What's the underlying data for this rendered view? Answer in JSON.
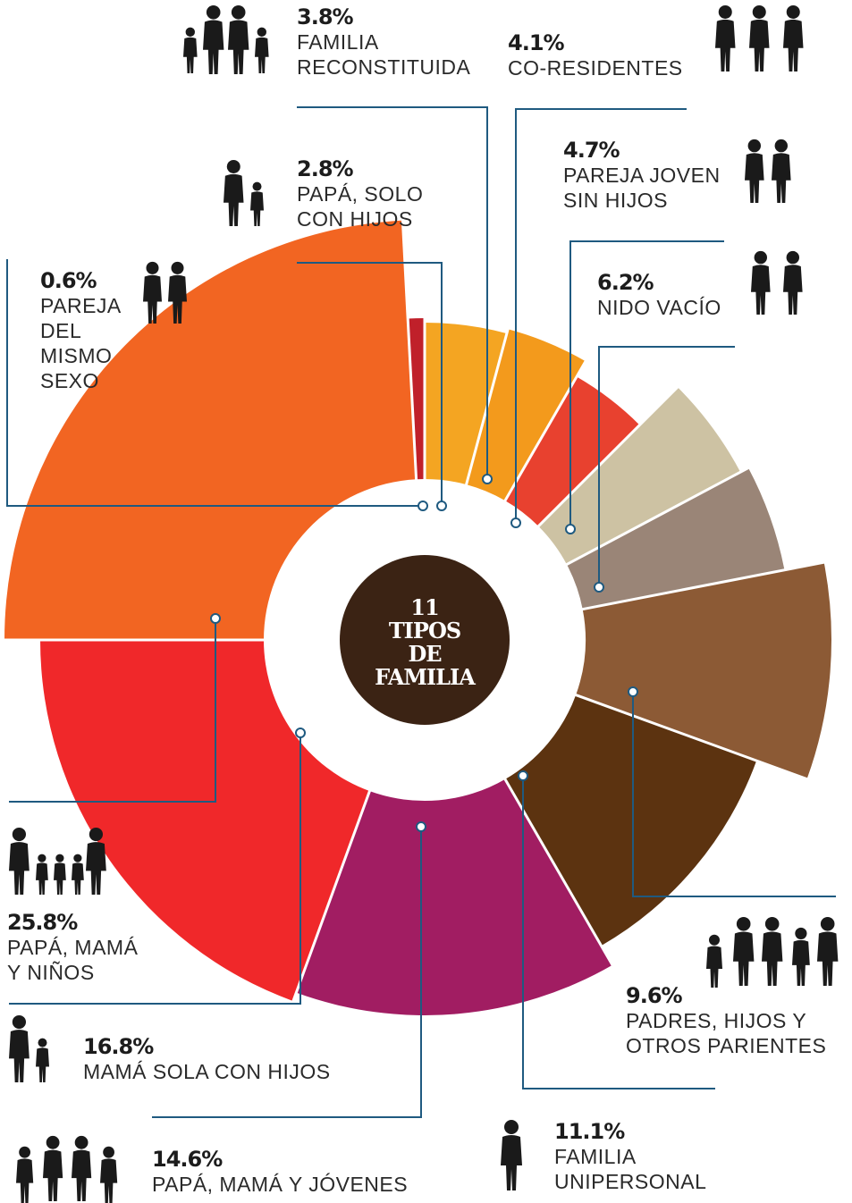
{
  "chart_data": {
    "type": "pie",
    "center_label": [
      "11",
      "TIPOS",
      "DE",
      "FAMILIA"
    ],
    "slices": [
      {
        "key": "same_sex",
        "value": 0.6,
        "value_label": "0.6%",
        "lines": [
          "PAREJA",
          "DEL",
          "MISMO",
          "SEXO"
        ],
        "color": "#c0202a",
        "icon": "couple-icon"
      },
      {
        "key": "single_dad",
        "value": 2.8,
        "value_label": "2.8%",
        "lines": [
          "PAPÁ, SOLO",
          "CON HIJOS"
        ],
        "color": "#f4a522",
        "icon": "father-child-icon"
      },
      {
        "key": "reconstituted",
        "value": 3.8,
        "value_label": "3.8%",
        "lines": [
          "FAMILIA",
          "RECONSTITUIDA"
        ],
        "color": "#f39a1c",
        "icon": "family-icon"
      },
      {
        "key": "co_residents",
        "value": 4.1,
        "value_label": "4.1%",
        "lines": [
          "CO-RESIDENTES"
        ],
        "color": "#e8412f",
        "icon": "three-people-icon"
      },
      {
        "key": "young_couple",
        "value": 4.7,
        "value_label": "4.7%",
        "lines": [
          "PAREJA JOVEN",
          "SIN HIJOS"
        ],
        "color": "#cdc2a3",
        "icon": "couple-icon"
      },
      {
        "key": "empty_nest",
        "value": 6.2,
        "value_label": "6.2%",
        "lines": [
          "NIDO VACÍO"
        ],
        "color": "#9a8577",
        "icon": "elderly-couple-icon"
      },
      {
        "key": "extended",
        "value": 9.6,
        "value_label": "9.6%",
        "lines": [
          "PADRES, HIJOS Y",
          "OTROS PARIENTES"
        ],
        "color": "#8c5a35",
        "icon": "extended-family-icon"
      },
      {
        "key": "single_person",
        "value": 11.1,
        "value_label": "11.1%",
        "lines": [
          "FAMILIA",
          "UNIPERSONAL"
        ],
        "color": "#5c3310",
        "icon": "woman-icon"
      },
      {
        "key": "parents_youths",
        "value": 14.6,
        "value_label": "14.6%",
        "lines": [
          "PAPÁ, MAMÁ Y JÓVENES"
        ],
        "color": "#a11d62",
        "icon": "family-youth-icon"
      },
      {
        "key": "single_mom",
        "value": 16.8,
        "value_label": "16.8%",
        "lines": [
          "MAMÁ SOLA CON HIJOS"
        ],
        "color": "#f0282a",
        "icon": "mother-child-icon"
      },
      {
        "key": "parents_kids",
        "value": 25.8,
        "value_label": "25.8%",
        "lines": [
          "PAPÁ, MAMÁ",
          "Y NIÑOS"
        ],
        "color": "#f26522",
        "icon": "family-kids-icon"
      }
    ],
    "colors": {
      "hub": "#3b2314",
      "leader": "#1f5a80"
    }
  }
}
